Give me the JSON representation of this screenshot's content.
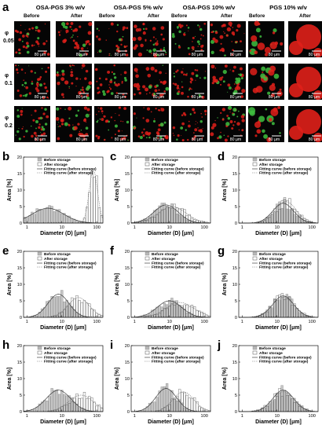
{
  "panel_a": {
    "label": "a",
    "groups": [
      {
        "title": "OSA-PGS 3% w/v"
      },
      {
        "title": "OSA-PGS 5% w/v"
      },
      {
        "title": "OSA-PGS 10% w/v"
      },
      {
        "title": "PGS 10% w/v"
      }
    ],
    "before_label": "Before",
    "after_label": "After",
    "phi_symbol": "φ",
    "rows": [
      "0.05",
      "0.1",
      "0.2"
    ],
    "scale_bar": "80 μm",
    "colors": {
      "background": "#050505",
      "droplet_red": "#e0201a",
      "droplet_green": "#3fbf3f"
    }
  },
  "legend": {
    "before": "Before storage",
    "after": "After storage",
    "fit_before": "Fitting curve (before storage)",
    "fit_after": "Fitting curve (after storage)"
  },
  "chart_data": [
    {
      "label": "b",
      "type": "bar",
      "xscale": "log",
      "xlabel": "Diameter (D) [μm]",
      "ylabel": "Area [%]",
      "xlim": [
        0.8,
        150
      ],
      "ylim": [
        0,
        20
      ],
      "xticks": [
        "1",
        "10",
        "100"
      ],
      "yticks": [
        "0",
        "5",
        "10",
        "15",
        "20"
      ],
      "series": [
        {
          "name": "Before storage",
          "peak_x": 4,
          "peak_y": 4.5,
          "width": 0.45
        },
        {
          "name": "After storage",
          "peak_x": 80,
          "peak_y": 16,
          "width": 0.12
        }
      ]
    },
    {
      "label": "c",
      "type": "bar",
      "xscale": "log",
      "xlabel": "Diameter (D) [μm]",
      "ylabel": "Area [%]",
      "xlim": [
        0.8,
        150
      ],
      "ylim": [
        0,
        20
      ],
      "xticks": [
        "1",
        "10",
        "100"
      ],
      "yticks": [
        "0",
        "5",
        "10",
        "15",
        "20"
      ],
      "series": [
        {
          "name": "Before storage",
          "peak_x": 8,
          "peak_y": 5.5,
          "width": 0.35
        },
        {
          "name": "After storage",
          "peak_x": 12,
          "peak_y": 5,
          "width": 0.4
        }
      ]
    },
    {
      "label": "d",
      "type": "bar",
      "xscale": "log",
      "xlabel": "Diameter (D) [μm]",
      "ylabel": "Area [%]",
      "xlim": [
        0.8,
        150
      ],
      "ylim": [
        0,
        20
      ],
      "xticks": [
        "1",
        "10",
        "100"
      ],
      "yticks": [
        "0",
        "5",
        "10",
        "15",
        "20"
      ],
      "series": [
        {
          "name": "Before storage",
          "peak_x": 15,
          "peak_y": 6,
          "width": 0.3
        },
        {
          "name": "After storage",
          "peak_x": 18,
          "peak_y": 6.5,
          "width": 0.3
        }
      ]
    },
    {
      "label": "e",
      "type": "bar",
      "xscale": "log",
      "xlabel": "Diameter (D) [μm]",
      "ylabel": "Area [%]",
      "xlim": [
        0.8,
        150
      ],
      "ylim": [
        0,
        20
      ],
      "xticks": [
        "1",
        "10",
        "100"
      ],
      "yticks": [
        "0",
        "5",
        "10",
        "15",
        "20"
      ],
      "series": [
        {
          "name": "Before storage",
          "peak_x": 8,
          "peak_y": 7,
          "width": 0.3
        },
        {
          "name": "After storage",
          "peak_x": 30,
          "peak_y": 6,
          "width": 0.3
        }
      ]
    },
    {
      "label": "f",
      "type": "bar",
      "xscale": "log",
      "xlabel": "Diameter (D) [μm]",
      "ylabel": "Area [%]",
      "xlim": [
        0.8,
        150
      ],
      "ylim": [
        0,
        20
      ],
      "xticks": [
        "1",
        "10",
        "100"
      ],
      "yticks": [
        "0",
        "5",
        "10",
        "15",
        "20"
      ],
      "series": [
        {
          "name": "Before storage",
          "peak_x": 10,
          "peak_y": 5,
          "width": 0.35
        },
        {
          "name": "After storage",
          "peak_x": 20,
          "peak_y": 4.5,
          "width": 0.4
        }
      ]
    },
    {
      "label": "g",
      "type": "bar",
      "xscale": "log",
      "xlabel": "Diameter (D) [μm]",
      "ylabel": "Area [%]",
      "xlim": [
        0.8,
        150
      ],
      "ylim": [
        0,
        20
      ],
      "xticks": [
        "1",
        "10",
        "100"
      ],
      "yticks": [
        "0",
        "5",
        "10",
        "15",
        "20"
      ],
      "series": [
        {
          "name": "Before storage",
          "peak_x": 15,
          "peak_y": 6.5,
          "width": 0.3
        },
        {
          "name": "After storage",
          "peak_x": 15,
          "peak_y": 6,
          "width": 0.32
        }
      ]
    },
    {
      "label": "h",
      "type": "bar",
      "xscale": "log",
      "xlabel": "Diameter (D) [μm]",
      "ylabel": "Area [%]",
      "xlim": [
        0.8,
        150
      ],
      "ylim": [
        0,
        20
      ],
      "xticks": [
        "1",
        "10",
        "100"
      ],
      "yticks": [
        "0",
        "5",
        "10",
        "15",
        "20"
      ],
      "series": [
        {
          "name": "Before storage",
          "peak_x": 8,
          "peak_y": 6.5,
          "width": 0.35
        },
        {
          "name": "After storage",
          "peak_x": 35,
          "peak_y": 5,
          "width": 0.35
        }
      ]
    },
    {
      "label": "i",
      "type": "bar",
      "xscale": "log",
      "xlabel": "Diameter (D) [μm]",
      "ylabel": "Area [%]",
      "xlim": [
        0.8,
        150
      ],
      "ylim": [
        0,
        20
      ],
      "xticks": [
        "1",
        "10",
        "100"
      ],
      "yticks": [
        "0",
        "5",
        "10",
        "15",
        "20"
      ],
      "series": [
        {
          "name": "Before storage",
          "peak_x": 8,
          "peak_y": 7,
          "width": 0.3
        },
        {
          "name": "After storage",
          "peak_x": 25,
          "peak_y": 6,
          "width": 0.3
        }
      ]
    },
    {
      "label": "j",
      "type": "bar",
      "xscale": "log",
      "xlabel": "Diameter (D) [μm]",
      "ylabel": "Area [%]",
      "xlim": [
        0.8,
        150
      ],
      "ylim": [
        0,
        20
      ],
      "xticks": [
        "1",
        "10",
        "100"
      ],
      "yticks": [
        "0",
        "5",
        "10",
        "15",
        "20"
      ],
      "series": [
        {
          "name": "Before storage",
          "peak_x": 15,
          "peak_y": 6.5,
          "width": 0.3
        },
        {
          "name": "After storage",
          "peak_x": 15,
          "peak_y": 6,
          "width": 0.32
        }
      ]
    }
  ]
}
